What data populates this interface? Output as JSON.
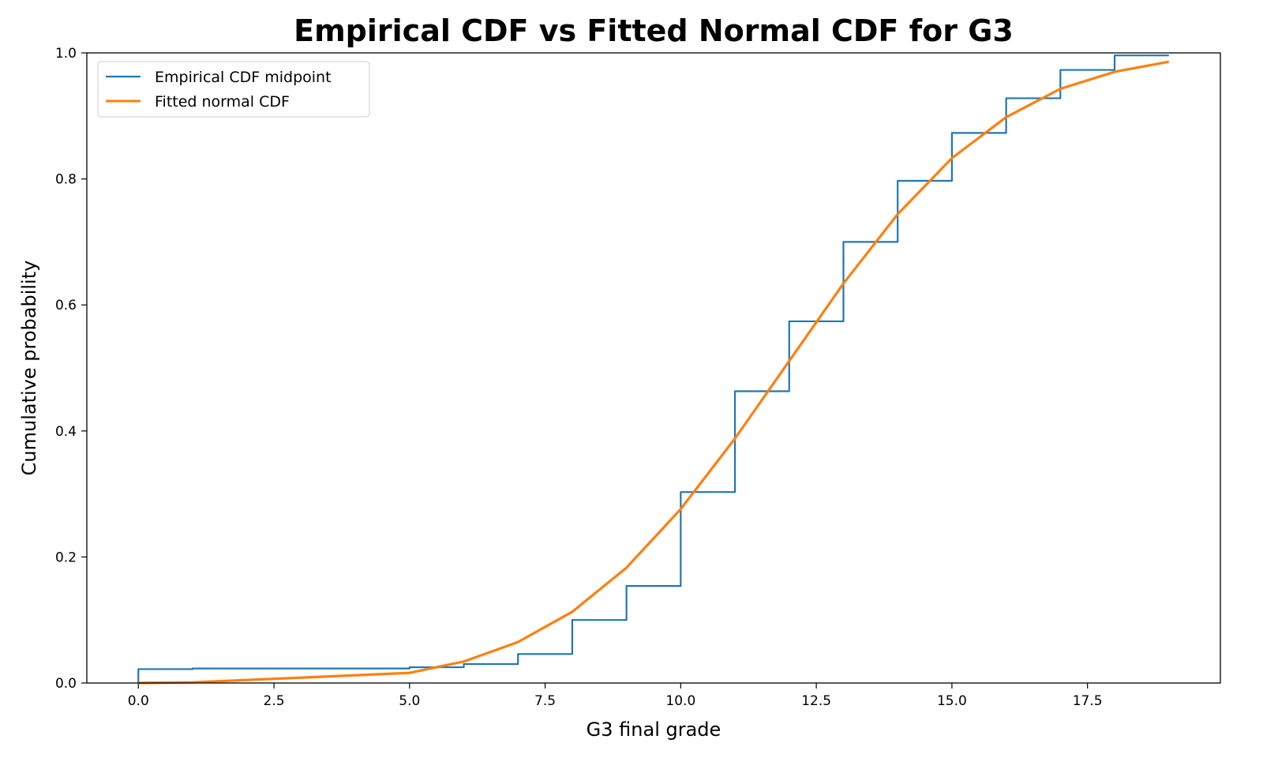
{
  "chart_data": {
    "type": "line",
    "title": "Empirical CDF vs Fitted Normal CDF for G3",
    "xlabel": "G3 final grade",
    "ylabel": "Cumulative probability",
    "xlim": [
      -0.95,
      19.95
    ],
    "ylim": [
      0.0,
      1.0
    ],
    "x_ticks": [
      0.0,
      2.5,
      5.0,
      7.5,
      10.0,
      12.5,
      15.0,
      17.5
    ],
    "x_tick_labels": [
      "0.0",
      "2.5",
      "5.0",
      "7.5",
      "10.0",
      "12.5",
      "15.0",
      "17.5"
    ],
    "y_ticks": [
      0.0,
      0.2,
      0.4,
      0.6,
      0.8,
      1.0
    ],
    "y_tick_labels": [
      "0.0",
      "0.2",
      "0.4",
      "0.6",
      "0.8",
      "1.0"
    ],
    "grid": false,
    "legend_position": "upper-left",
    "series": [
      {
        "name": "Empirical CDF midpoint",
        "color": "#1f77b4",
        "style": "step-post",
        "x": [
          0,
          1,
          5,
          6,
          7,
          8,
          9,
          10,
          11,
          12,
          13,
          14,
          15,
          16,
          17,
          18,
          19
        ],
        "y": [
          0.022,
          0.023,
          0.025,
          0.03,
          0.046,
          0.1,
          0.154,
          0.303,
          0.463,
          0.574,
          0.7,
          0.797,
          0.873,
          0.928,
          0.973,
          0.996,
          0.996
        ]
      },
      {
        "name": "Fitted normal CDF",
        "color": "#ff7f0e",
        "style": "line",
        "x": [
          0,
          1,
          5,
          6,
          7,
          8,
          9,
          10,
          11,
          12,
          13,
          14,
          15,
          16,
          17,
          18,
          19
        ],
        "y": [
          0.0,
          0.001,
          0.016,
          0.034,
          0.065,
          0.113,
          0.183,
          0.276,
          0.388,
          0.511,
          0.634,
          0.744,
          0.833,
          0.898,
          0.943,
          0.97,
          0.986
        ]
      }
    ]
  }
}
